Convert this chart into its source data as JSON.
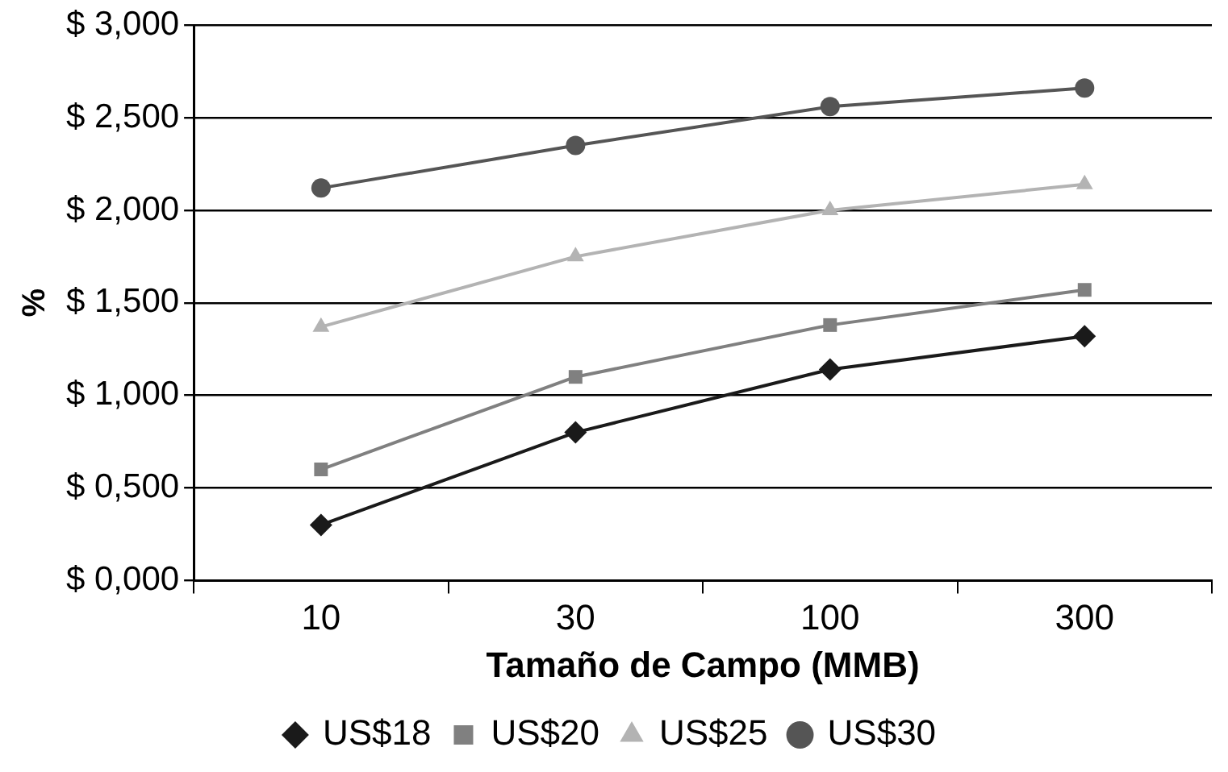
{
  "chart_data": {
    "type": "line",
    "xlabel": "Tamaño de Campo (MMB)",
    "ylabel": "%",
    "categories": [
      "10",
      "30",
      "100",
      "300"
    ],
    "series": [
      {
        "name": "US$18",
        "color": "#1a1a1a",
        "marker": "diamond",
        "values": [
          0.3,
          0.8,
          1.14,
          1.32
        ]
      },
      {
        "name": "US$20",
        "color": "#808080",
        "marker": "square",
        "values": [
          0.6,
          1.1,
          1.38,
          1.57
        ]
      },
      {
        "name": "US$25",
        "color": "#b3b3b3",
        "marker": "triangle",
        "values": [
          1.37,
          1.75,
          2.0,
          2.14
        ]
      },
      {
        "name": "US$30",
        "color": "#555555",
        "marker": "circle",
        "values": [
          2.12,
          2.35,
          2.56,
          2.66
        ]
      }
    ],
    "ylim": [
      0,
      3
    ],
    "yticks": [
      {
        "value": 0,
        "label": "$ 0,000"
      },
      {
        "value": 0.5,
        "label": "$ 0,500"
      },
      {
        "value": 1,
        "label": "$ 1,000"
      },
      {
        "value": 1.5,
        "label": "$ 1,500"
      },
      {
        "value": 2,
        "label": "$ 2,000"
      },
      {
        "value": 2.5,
        "label": "$ 2,500"
      },
      {
        "value": 3,
        "label": "$ 3,000"
      }
    ],
    "grid": "y",
    "legend": "bottom",
    "line_style": "solid"
  }
}
